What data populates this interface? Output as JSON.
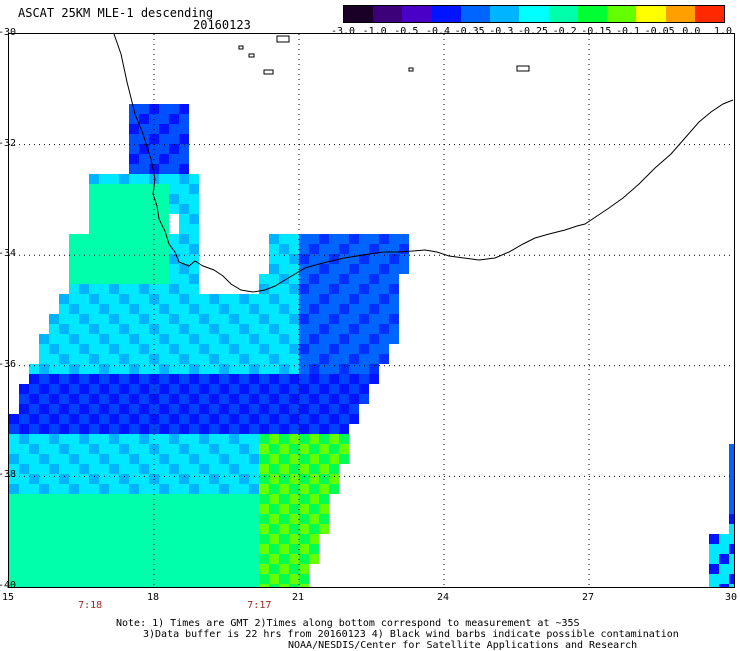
{
  "header": {
    "title": "ASCAT 25KM MLE-1 descending",
    "date": "20160123"
  },
  "colorbar": {
    "ticks": [
      "-3.0",
      "-1.0",
      "-0.5",
      "-0.4",
      "-0.35",
      "-0.3",
      "-0.25",
      "-0.2",
      "-0.15",
      "-0.1",
      "-0.05",
      "0.0",
      "1.0"
    ],
    "colors": [
      "#1a0026",
      "#3c0078",
      "#4b00c8",
      "#0014ff",
      "#0064ff",
      "#00b4ff",
      "#00ffff",
      "#00ffaa",
      "#00ff32",
      "#64ff00",
      "#ffff00",
      "#ffa000",
      "#ff2800"
    ]
  },
  "map": {
    "lat_labels": [
      "-30",
      "-32",
      "-34",
      "-36",
      "-38",
      "-40"
    ],
    "lon_labels": [
      "15",
      "18",
      "21",
      "24",
      "27",
      "30"
    ],
    "lat_range": [
      -40,
      -30
    ],
    "lon_range": [
      15,
      30
    ],
    "grid": true,
    "pass_times": [
      {
        "lon": 16.7,
        "label": "7:18"
      },
      {
        "lon": 20.2,
        "label": "7:17"
      }
    ]
  },
  "notes": {
    "line1": "Note: 1) Times are GMT 2)Times along bottom correspond to measurement at ~35S",
    "line2": "3)Data buffer is 22 hrs from 20160123 4) Black wind barbs indicate possible contamination",
    "line3": "NOAA/NESDIS/Center for Satellite Applications and Research"
  }
}
